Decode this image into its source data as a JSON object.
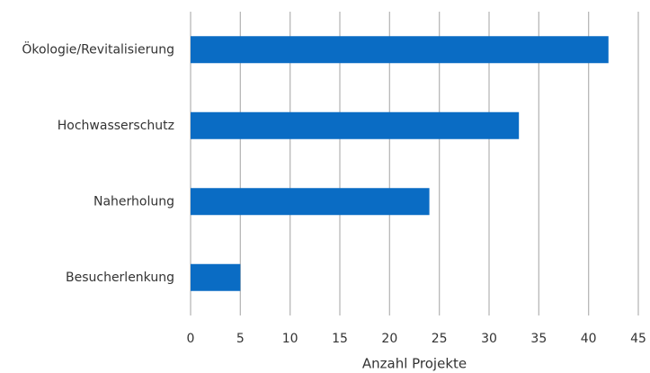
{
  "chart_data": {
    "type": "bar",
    "orientation": "horizontal",
    "categories": [
      "Ökologie/Revitalisierung",
      "Hochwasserschutz",
      "Naherholung",
      "Besucherlenkung"
    ],
    "values": [
      42,
      33,
      24,
      5
    ],
    "color": "#0a6cc4",
    "xlabel": "Anzahl Projekte",
    "xlim": [
      0,
      45
    ],
    "xticks": [
      0,
      5,
      10,
      15,
      20,
      25,
      30,
      35,
      40,
      45
    ],
    "grid": true
  }
}
